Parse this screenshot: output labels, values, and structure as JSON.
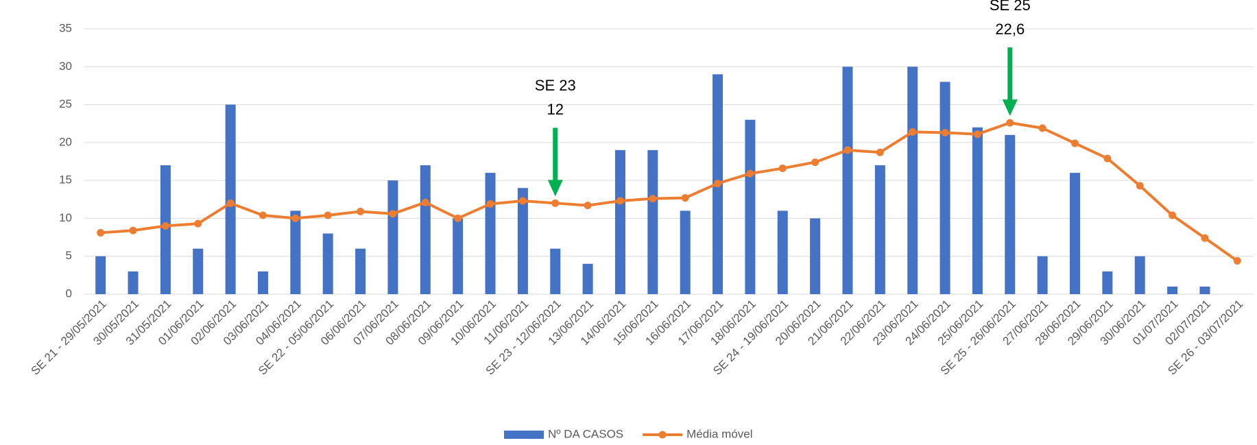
{
  "chart_data": {
    "type": "bar-line",
    "categories": [
      "SE 21 - 29/05/2021",
      "30/05/2021",
      "31/05/2021",
      "01/06/2021",
      "02/06/2021",
      "03/06/2021",
      "04/06/2021",
      "SE 22 - 05/06/2021",
      "06/06/2021",
      "07/06/2021",
      "08/06/2021",
      "09/06/2021",
      "10/06/2021",
      "11/06/2021",
      "SE 23 - 12/06/2021",
      "13/06/2021",
      "14/06/2021",
      "15/06/2021",
      "16/06/2021",
      "17/06/2021",
      "18/06/2021",
      "SE 24 - 19/06/2021",
      "20/06/2021",
      "21/06/2021",
      "22/06/2021",
      "23/06/2021",
      "24/06/2021",
      "25/06/2021",
      "SE 25 - 26/06/2021",
      "27/06/2021",
      "28/06/2021",
      "29/06/2021",
      "30/06/2021",
      "01/07/2021",
      "02/07/2021",
      "SE 26 - 03/07/2021"
    ],
    "series": [
      {
        "name": "Nº DA CASOS",
        "type": "bar",
        "color": "#4472c4",
        "values": [
          5,
          3,
          17,
          6,
          25,
          3,
          11,
          8,
          6,
          15,
          17,
          10,
          16,
          14,
          6,
          4,
          19,
          19,
          11,
          29,
          23,
          11,
          10,
          30,
          17,
          30,
          28,
          22,
          21,
          5,
          16,
          3,
          5,
          1,
          1,
          null
        ]
      },
      {
        "name": "Média móvel",
        "type": "line",
        "color": "#ed7d31",
        "values": [
          8.1,
          8.4,
          9,
          9.3,
          12,
          10.4,
          10,
          10.4,
          10.9,
          10.6,
          12.1,
          10,
          11.9,
          12.3,
          12,
          11.7,
          12.3,
          12.6,
          12.7,
          14.6,
          15.9,
          16.6,
          17.4,
          19,
          18.7,
          21.4,
          21.3,
          21.1,
          22.6,
          21.9,
          19.9,
          17.9,
          14.3,
          10.4,
          7.4,
          4.4
        ]
      }
    ],
    "ylim": [
      0,
      35
    ],
    "yticks": [
      0,
      5,
      10,
      15,
      20,
      25,
      30,
      35
    ],
    "grid": true,
    "legend": "bottom",
    "annotations": [
      {
        "title": "SE 23",
        "text": "12",
        "category": "SE 23 - 12/06/2021",
        "color": "#00b050"
      },
      {
        "title": "SE 25",
        "text": "22,6",
        "category": "SE 25 - 26/06/2021",
        "color": "#00b050"
      }
    ]
  }
}
